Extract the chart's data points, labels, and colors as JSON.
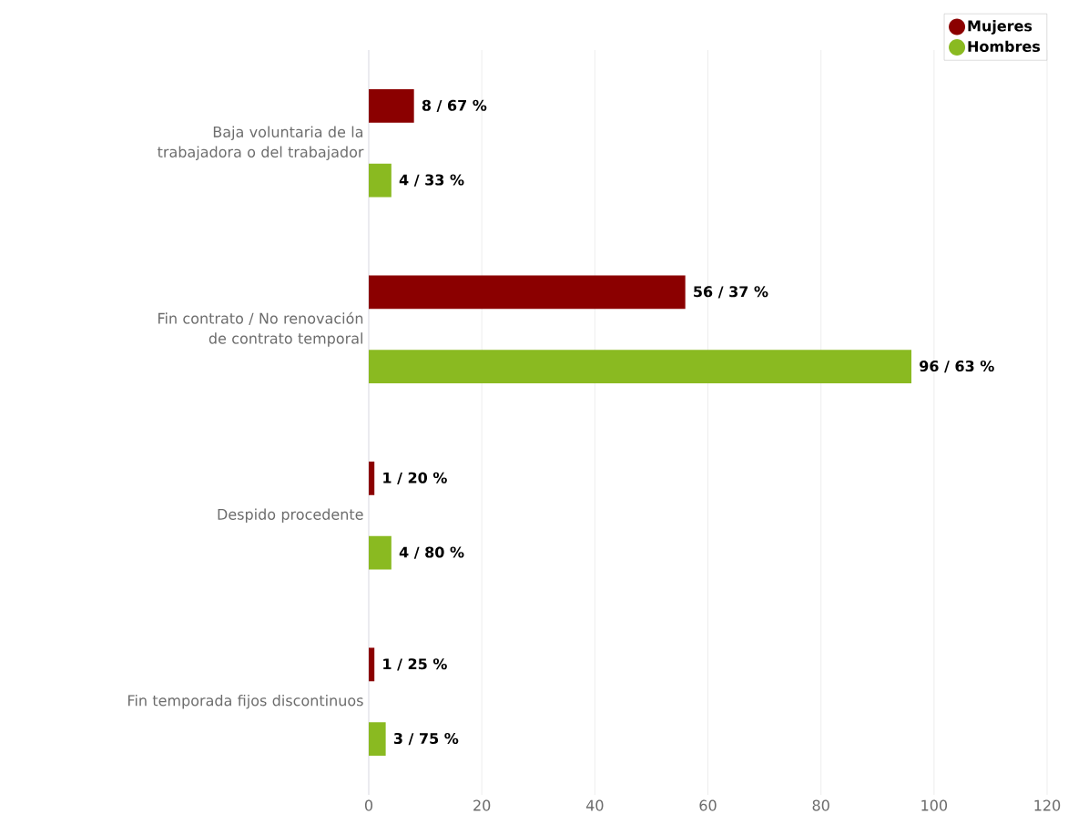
{
  "chart_data": {
    "type": "bar",
    "orientation": "horizontal",
    "categories": [
      "Baja voluntaria de la trabajadora o del trabajador",
      "Fin contrato / No renovación de contrato temporal",
      "Despido procedente",
      "Fin temporada fijos discontinuos"
    ],
    "series": [
      {
        "name": "Mujeres",
        "color": "#8b0000",
        "values": [
          8,
          56,
          1,
          1
        ],
        "value_labels": [
          "8 / 67 %",
          "56 / 37 %",
          "1 / 20 %",
          "1 / 25 %"
        ]
      },
      {
        "name": "Hombres",
        "color": "#8aba21",
        "values": [
          4,
          96,
          4,
          3
        ],
        "value_labels": [
          "4 / 33 %",
          "96 / 63 %",
          "4 / 80 %",
          "3 / 75 %"
        ]
      }
    ],
    "xlim": [
      0,
      120
    ],
    "xticks": [
      0,
      20,
      40,
      60,
      80,
      100,
      120
    ],
    "grid": "x",
    "legend": "top right"
  }
}
